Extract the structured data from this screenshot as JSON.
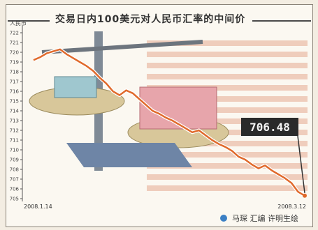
{
  "chart_data": {
    "type": "line",
    "title": "交易日内100美元对人民币汇率的中间价",
    "ylabel_unit": "人民币",
    "x_start_label": "2008.1.14",
    "x_end_label": "2008.3.12",
    "callout_value": "706.48",
    "yticks": [
      "722",
      "721",
      "720",
      "719",
      "718",
      "717",
      "716",
      "715",
      "714",
      "713",
      "712",
      "711",
      "710",
      "709",
      "708",
      "707",
      "706",
      "705"
    ],
    "ylim": [
      705,
      722.5
    ],
    "series": [
      {
        "values": [
          719.2,
          719.5,
          719.9,
          720.1,
          720.3,
          719.8,
          719.4,
          719.0,
          718.6,
          718.1,
          717.4,
          716.8,
          716.0,
          715.6,
          716.1,
          715.8,
          715.2,
          714.6,
          714.0,
          713.7,
          713.3,
          713.0,
          712.6,
          712.2,
          711.8,
          712.0,
          711.5,
          711.0,
          710.6,
          710.3,
          709.9,
          709.3,
          709.0,
          708.5,
          708.1,
          708.4,
          707.9,
          707.5,
          707.1,
          706.6,
          705.7,
          705.3
        ]
      }
    ],
    "colors": {
      "line": "#e06a2c",
      "stripe": "#e6a98f",
      "callout_bg": "#2a2a2a",
      "callout_text": "#f4f4f4"
    }
  },
  "credit": "马琛 汇编 许明生绘"
}
